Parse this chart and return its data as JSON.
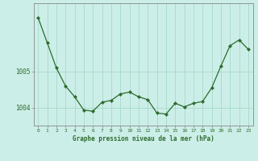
{
  "x": [
    0,
    1,
    2,
    3,
    4,
    5,
    6,
    7,
    8,
    9,
    10,
    11,
    12,
    13,
    14,
    15,
    16,
    17,
    18,
    19,
    20,
    21,
    22,
    23
  ],
  "y": [
    1006.5,
    1005.8,
    1005.1,
    1004.6,
    1004.3,
    1003.93,
    1003.9,
    1004.15,
    1004.2,
    1004.38,
    1004.43,
    1004.3,
    1004.22,
    1003.85,
    1003.82,
    1004.12,
    1004.02,
    1004.12,
    1004.17,
    1004.55,
    1005.15,
    1005.72,
    1005.88,
    1005.62
  ],
  "line_color": "#2d6b2d",
  "marker_color": "#2d6b2d",
  "bg_color": "#cceee8",
  "grid_color": "#aaddcc",
  "axis_color": "#2d6b2d",
  "border_color": "#888888",
  "title": "Graphe pression niveau de la mer (hPa)",
  "ylabel_ticks": [
    1004,
    1005
  ],
  "xlim": [
    -0.5,
    23.5
  ],
  "ylim": [
    1003.5,
    1006.9
  ]
}
